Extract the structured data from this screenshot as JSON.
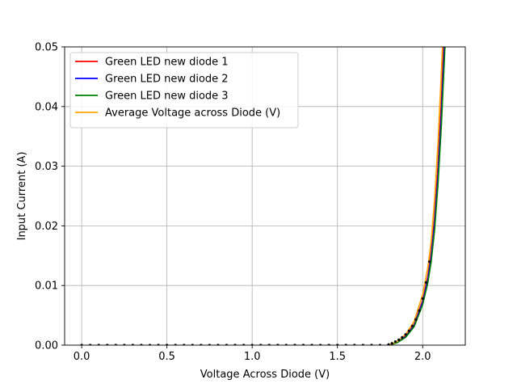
{
  "chart_data": {
    "type": "line",
    "title": "",
    "xlabel": "Voltage Across Diode (V)",
    "ylabel": "Input Current (A)",
    "xlim": [
      -0.1,
      2.25
    ],
    "ylim": [
      0.0,
      0.05
    ],
    "xticks": [
      0.0,
      0.5,
      1.0,
      1.5,
      2.0
    ],
    "xtick_labels": [
      "0.0",
      "0.5",
      "1.0",
      "1.5",
      "2.0"
    ],
    "yticks": [
      0.0,
      0.01,
      0.02,
      0.03,
      0.04,
      0.05
    ],
    "ytick_labels": [
      "0.00",
      "0.01",
      "0.02",
      "0.03",
      "0.04",
      "0.05"
    ],
    "grid": true,
    "legend_position": "top-left",
    "series": [
      {
        "name": "Green LED new diode 1",
        "color": "#ff0000",
        "x": [
          1.8,
          1.85,
          1.9,
          1.95,
          2.0,
          2.03,
          2.05,
          2.07,
          2.09,
          2.11,
          2.13,
          2.14
        ],
        "y": [
          0.0,
          0.0005,
          0.0015,
          0.0035,
          0.0075,
          0.0115,
          0.0155,
          0.0215,
          0.03,
          0.041,
          0.055,
          0.063
        ]
      },
      {
        "name": "Green LED new diode 2",
        "color": "#0000ff",
        "x": [
          1.8,
          1.85,
          1.9,
          1.95,
          2.0,
          2.03,
          2.05,
          2.07,
          2.09,
          2.11,
          2.13,
          2.14
        ],
        "y": [
          0.0,
          0.0005,
          0.0014,
          0.0033,
          0.0072,
          0.011,
          0.0148,
          0.0205,
          0.0285,
          0.039,
          0.052,
          0.06
        ]
      },
      {
        "name": "Green LED new diode 3",
        "color": "#008000",
        "x": [
          1.8,
          1.85,
          1.9,
          1.95,
          2.0,
          2.03,
          2.05,
          2.07,
          2.09,
          2.11,
          2.13,
          2.14
        ],
        "y": [
          0.0,
          0.0004,
          0.0013,
          0.0031,
          0.0068,
          0.0104,
          0.014,
          0.0193,
          0.027,
          0.037,
          0.0495,
          0.057
        ]
      },
      {
        "name": "Average Voltage across Diode (V)",
        "color": "#ffa500",
        "x": [
          1.8,
          1.85,
          1.9,
          1.95,
          2.0,
          2.03,
          2.05,
          2.07,
          2.09,
          2.11,
          2.13
        ],
        "y": [
          0.0,
          0.0006,
          0.0018,
          0.004,
          0.0085,
          0.013,
          0.0175,
          0.0245,
          0.034,
          0.046,
          0.06
        ]
      }
    ],
    "scatter": {
      "color": "#000000",
      "x": [
        0.0,
        0.05,
        0.1,
        0.15,
        0.2,
        0.25,
        0.3,
        0.35,
        0.4,
        0.45,
        0.5,
        0.55,
        0.6,
        0.65,
        0.7,
        0.75,
        0.8,
        0.85,
        0.9,
        0.95,
        1.0,
        1.05,
        1.1,
        1.15,
        1.2,
        1.25,
        1.3,
        1.35,
        1.4,
        1.45,
        1.5,
        1.55,
        1.6,
        1.65,
        1.7,
        1.75,
        1.8,
        1.82,
        1.84,
        1.86,
        1.88,
        1.9,
        1.92,
        1.94,
        1.96,
        1.98,
        2.0,
        2.02,
        2.04
      ],
      "y": [
        0,
        0,
        0,
        0,
        0,
        0,
        0,
        0,
        0,
        0,
        0,
        0,
        0,
        0,
        0,
        0,
        0,
        0,
        0,
        0,
        0,
        0,
        0,
        0,
        0,
        0,
        0,
        0,
        0,
        0,
        0,
        0,
        0,
        0,
        0,
        0,
        0.0001,
        0.0003,
        0.0006,
        0.0009,
        0.0013,
        0.0018,
        0.0024,
        0.0032,
        0.0043,
        0.0058,
        0.0078,
        0.0105,
        0.014
      ]
    }
  }
}
